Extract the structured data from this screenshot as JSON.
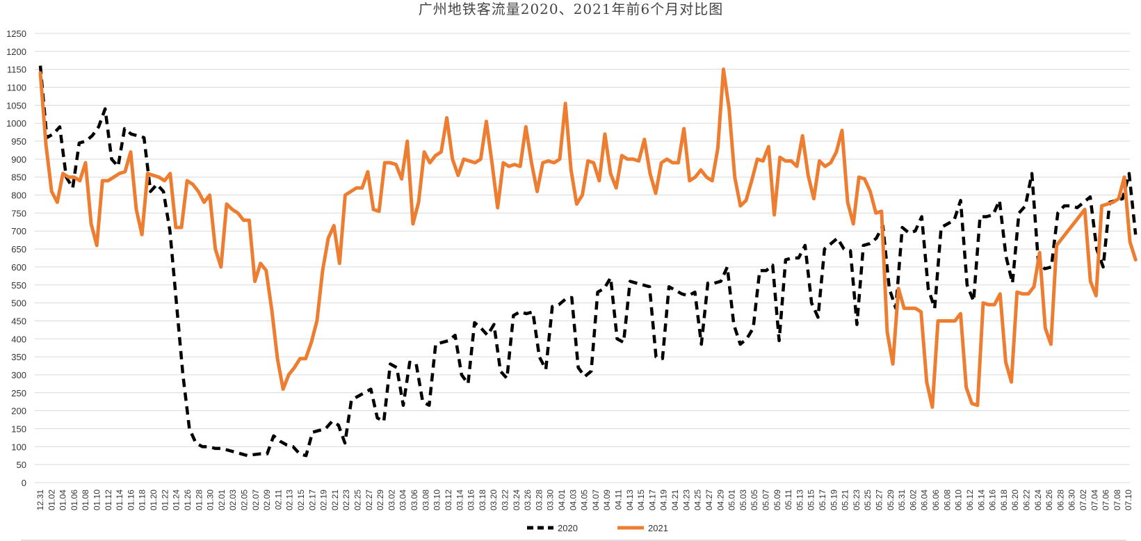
{
  "chart_data": {
    "type": "line",
    "title": "广州地铁客流量2020、2021年前6个月对比图",
    "xlabel": "",
    "ylabel": "",
    "ylim": [
      0,
      1250
    ],
    "yticks": [
      0,
      50,
      100,
      150,
      200,
      250,
      300,
      350,
      400,
      450,
      500,
      550,
      600,
      650,
      700,
      750,
      800,
      850,
      900,
      950,
      1000,
      1050,
      1100,
      1150,
      1200,
      1250
    ],
    "grid": true,
    "legend_position": "bottom",
    "x_tick_labels": [
      "12.31",
      "01.02",
      "01.04",
      "01.06",
      "01.08",
      "01.10",
      "01.12",
      "01.14",
      "01.16",
      "01.18",
      "01.20",
      "01.22",
      "01.24",
      "01.26",
      "01.28",
      "01.30",
      "02.01",
      "02.03",
      "02.05",
      "02.07",
      "02.09",
      "02.11",
      "02.13",
      "02.15",
      "02.17",
      "02.19",
      "02.21",
      "02.23",
      "02.25",
      "02.27",
      "02.29",
      "03.02",
      "03.04",
      "03.06",
      "03.08",
      "03.10",
      "03.12",
      "03.14",
      "03.16",
      "03.18",
      "03.20",
      "03.22",
      "03.24",
      "03.26",
      "03.28",
      "03.30",
      "04.01",
      "04.03",
      "04.05",
      "04.07",
      "04.09",
      "04.11",
      "04.13",
      "04.15",
      "04.17",
      "04.19",
      "04.21",
      "04.23",
      "04.25",
      "04.27",
      "04.29",
      "05.01",
      "05.03",
      "05.05",
      "05.07",
      "05.09",
      "05.11",
      "05.13",
      "05.15",
      "05.17",
      "05.19",
      "05.21",
      "05.23",
      "05.25",
      "05.27",
      "05.29",
      "05.31",
      "06.02",
      "06.04",
      "06.06",
      "06.08",
      "06.10",
      "06.12",
      "06.14",
      "06.16",
      "06.18",
      "06.20",
      "06.22",
      "06.24",
      "06.26",
      "06.28",
      "06.30",
      "07.02",
      "07.04",
      "07.06",
      "07.08",
      "07.10"
    ],
    "series": [
      {
        "name": "2020",
        "color": "#000000",
        "style": "dashed",
        "values": [
          1160,
          960,
          970,
          990,
          850,
          820,
          945,
          950,
          965,
          990,
          1040,
          900,
          880,
          985,
          970,
          965,
          960,
          810,
          830,
          810,
          700,
          500,
          300,
          150,
          110,
          100,
          100,
          95,
          95,
          90,
          85,
          80,
          75,
          78,
          80,
          80,
          130,
          115,
          105,
          100,
          80,
          75,
          140,
          145,
          150,
          170,
          160,
          110,
          230,
          240,
          250,
          260,
          180,
          170,
          330,
          320,
          215,
          335,
          330,
          225,
          215,
          385,
          390,
          395,
          410,
          300,
          275,
          445,
          430,
          410,
          440,
          310,
          290,
          465,
          475,
          470,
          475,
          350,
          315,
          490,
          495,
          510,
          515,
          320,
          295,
          310,
          530,
          540,
          570,
          400,
          390,
          560,
          555,
          550,
          545,
          350,
          345,
          545,
          535,
          525,
          520,
          530,
          385,
          555,
          555,
          560,
          600,
          440,
          385,
          400,
          430,
          590,
          590,
          605,
          395,
          620,
          625,
          625,
          660,
          500,
          460,
          650,
          665,
          680,
          650,
          645,
          440,
          660,
          665,
          680,
          715,
          540,
          485,
          710,
          695,
          700,
          740,
          540,
          485,
          710,
          720,
          730,
          785,
          550,
          505,
          740,
          740,
          745,
          785,
          630,
          555,
          750,
          770,
          860,
          610,
          595,
          600,
          750,
          770,
          770,
          765,
          780,
          795,
          650,
          600,
          780,
          785,
          790,
          860,
          690
        ]
      },
      {
        "name": "2021",
        "color": "#ED7D31",
        "style": "solid",
        "values": [
          1140,
          940,
          810,
          780,
          860,
          850,
          850,
          840,
          890,
          720,
          660,
          840,
          840,
          850,
          860,
          865,
          920,
          760,
          690,
          860,
          855,
          850,
          840,
          860,
          710,
          710,
          840,
          830,
          810,
          780,
          800,
          650,
          600,
          775,
          760,
          750,
          730,
          730,
          560,
          610,
          590,
          480,
          345,
          260,
          300,
          320,
          345,
          345,
          390,
          450,
          590,
          680,
          715,
          610,
          800,
          810,
          820,
          820,
          865,
          760,
          755,
          890,
          890,
          885,
          845,
          950,
          720,
          780,
          920,
          890,
          910,
          920,
          1015,
          900,
          855,
          900,
          895,
          890,
          900,
          1005,
          890,
          765,
          890,
          880,
          885,
          880,
          990,
          890,
          810,
          890,
          895,
          890,
          900,
          1055,
          870,
          775,
          800,
          895,
          890,
          840,
          970,
          860,
          820,
          910,
          900,
          900,
          895,
          955,
          860,
          805,
          890,
          900,
          890,
          890,
          985,
          840,
          850,
          870,
          850,
          840,
          930,
          1150,
          1040,
          850,
          770,
          785,
          840,
          900,
          895,
          935,
          745,
          905,
          895,
          895,
          880,
          965,
          855,
          790,
          895,
          880,
          890,
          920,
          980,
          780,
          720,
          850,
          845,
          810,
          750,
          755,
          420,
          330,
          540,
          485,
          485,
          485,
          475,
          280,
          210,
          450,
          450,
          450,
          450,
          470,
          265,
          220,
          215,
          500,
          495,
          495,
          525,
          335,
          280,
          530,
          525,
          525,
          545,
          640,
          430,
          385,
          660,
          680,
          700,
          720,
          740,
          760,
          560,
          520,
          770,
          775,
          780,
          790,
          850,
          670,
          620
        ]
      }
    ]
  }
}
